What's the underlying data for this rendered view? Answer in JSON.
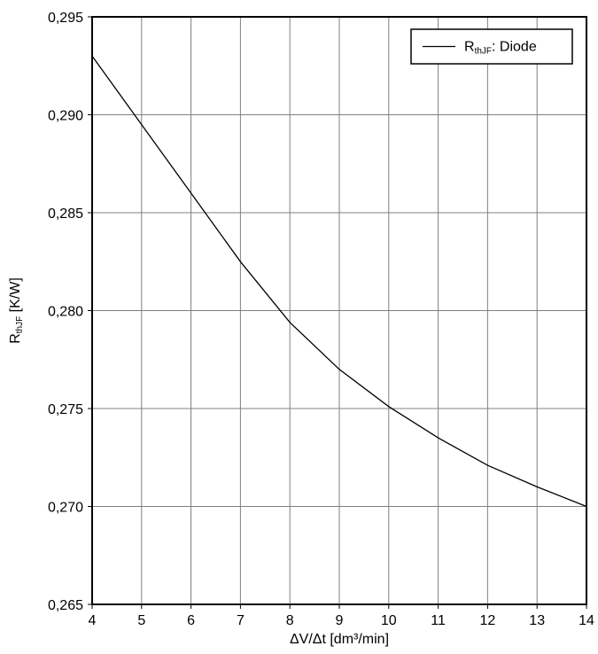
{
  "chart_data": {
    "type": "line",
    "title": "",
    "xlabel": "ΔV/Δt [dm³/min]",
    "ylabel": {
      "main": "R",
      "sub": "thJF",
      "unit": " [K/W]"
    },
    "xlim": [
      4,
      14
    ],
    "ylim": [
      0.265,
      0.295
    ],
    "x_ticks": [
      4,
      5,
      6,
      7,
      8,
      9,
      10,
      11,
      12,
      13,
      14
    ],
    "x_tick_labels": [
      "4",
      "5",
      "6",
      "7",
      "8",
      "9",
      "10",
      "11",
      "12",
      "13",
      "14"
    ],
    "y_ticks": [
      0.265,
      0.27,
      0.275,
      0.28,
      0.285,
      0.29,
      0.295
    ],
    "y_tick_labels": [
      "0,265",
      "0,270",
      "0,275",
      "0,280",
      "0,285",
      "0,290",
      "0,295"
    ],
    "grid": true,
    "legend_position": "top-right",
    "series": [
      {
        "name": {
          "main": "R",
          "sub": "thJF",
          "rest": ": Diode"
        },
        "color": "#000000",
        "x": [
          4,
          5,
          6,
          7,
          8,
          9,
          10,
          11,
          12,
          13,
          14
        ],
        "y": [
          0.293,
          0.2895,
          0.286,
          0.2825,
          0.2794,
          0.277,
          0.2751,
          0.2735,
          0.2721,
          0.271,
          0.27
        ]
      }
    ]
  }
}
